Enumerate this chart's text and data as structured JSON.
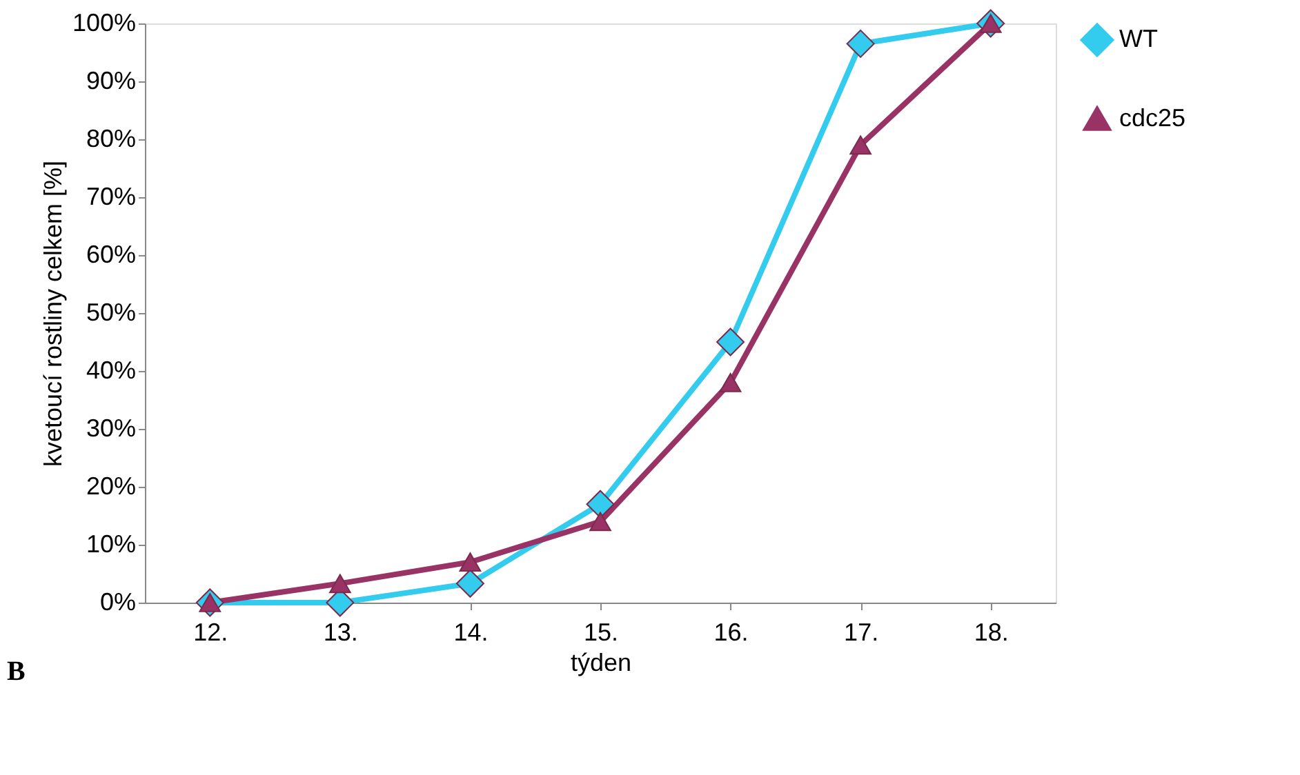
{
  "chart_data": {
    "type": "line",
    "xlabel": "týden",
    "ylabel": "kvetoucí rostliny celkem [%]",
    "categories": [
      "12.",
      "13.",
      "14.",
      "15.",
      "16.",
      "17.",
      "18."
    ],
    "series": [
      {
        "name": "WT",
        "color": "#33ccee",
        "marker": "diamond",
        "values": [
          0,
          0,
          3.3,
          17,
          45,
          96.5,
          100
        ]
      },
      {
        "name": "cdc25",
        "color": "#993366",
        "marker": "triangle",
        "values": [
          0,
          3.3,
          7,
          14,
          38,
          79,
          100
        ]
      }
    ],
    "ylim": [
      0,
      100
    ],
    "yticks": [
      {
        "value": 0,
        "label": "0%"
      },
      {
        "value": 10,
        "label": "10%"
      },
      {
        "value": 20,
        "label": "20%"
      },
      {
        "value": 30,
        "label": "30%"
      },
      {
        "value": 40,
        "label": "40%"
      },
      {
        "value": 50,
        "label": "50%"
      },
      {
        "value": 60,
        "label": "60%"
      },
      {
        "value": 70,
        "label": "70%"
      },
      {
        "value": 80,
        "label": "80%"
      },
      {
        "value": 90,
        "label": "90%"
      },
      {
        "value": 100,
        "label": "100%"
      }
    ],
    "grid": false,
    "legend": "right",
    "line_style": "solid",
    "annotations": [
      "B"
    ]
  }
}
